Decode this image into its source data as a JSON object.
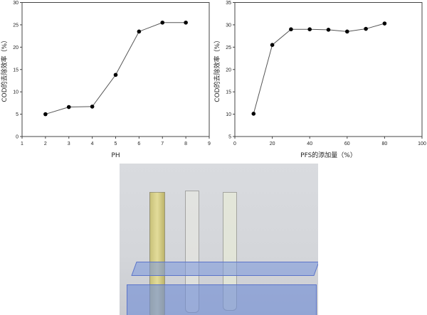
{
  "chart_data": [
    {
      "type": "line",
      "xlabel": "PH",
      "ylabel": "COD的去除效率（%）",
      "xlim": [
        1,
        9
      ],
      "ylim": [
        0,
        30
      ],
      "xticks": [
        1,
        2,
        3,
        4,
        5,
        6,
        7,
        8,
        9
      ],
      "yticks": [
        0,
        5,
        10,
        15,
        20,
        25,
        30
      ],
      "x": [
        2,
        3,
        4,
        5,
        6,
        7,
        8
      ],
      "values": [
        5.0,
        6.6,
        6.7,
        13.8,
        23.5,
        25.5,
        25.5
      ],
      "grid": false,
      "color": "#000000"
    },
    {
      "type": "line",
      "xlabel": "PFS的添加量（%）",
      "ylabel": "COD的去除效率（%）",
      "xlim": [
        0,
        100
      ],
      "ylim": [
        5,
        35
      ],
      "xticks": [
        0,
        20,
        40,
        60,
        80,
        100
      ],
      "yticks": [
        5,
        10,
        15,
        20,
        25,
        30,
        35
      ],
      "x": [
        10,
        20,
        30,
        40,
        50,
        60,
        70,
        80
      ],
      "values": [
        10.1,
        25.5,
        29.0,
        29.0,
        28.9,
        28.5,
        29.1,
        30.3
      ],
      "grid": false,
      "color": "#000000"
    }
  ],
  "photo": {
    "subject": "test-tubes-in-rack"
  }
}
